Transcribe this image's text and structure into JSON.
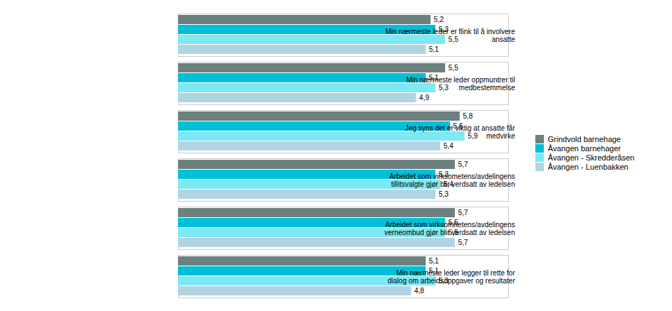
{
  "chart_data": {
    "type": "bar",
    "orientation": "horizontal",
    "categories": [
      "Min nærmeste leder er flink til å involvere\nansatte",
      "Min nærmeste leder oppmuntrer til\nmedbestemmelse",
      "Jeg syns det er viktig at ansatte får\nmedvirke",
      "Arbeidet som virksometens/avdelingens\ntillitsvalgte gjør blir verdsatt av ledelsen",
      "Arbeidet som virksomhetens/avdelingens\nverneombud gjør blir verdsatt av ledelsen",
      "Min nærmeste leder legger til rette for\ndialog om arbeidsoppgaver og resultater"
    ],
    "series": [
      {
        "name": "Grindvold barnehage",
        "color": "#6d8080",
        "values": [
          5.2,
          5.5,
          5.8,
          5.7,
          5.7,
          5.1
        ],
        "value_labels": [
          "5,2",
          "5,5",
          "5,8",
          "5,7",
          "5,7",
          "5,1"
        ]
      },
      {
        "name": "Åvangen barnehager",
        "color": "#00c0d8",
        "values": [
          5.3,
          5.1,
          5.6,
          5.3,
          5.5,
          5.1
        ],
        "value_labels": [
          "5,3",
          "5,1",
          "5,6",
          "5,3",
          "5,5",
          "5,1"
        ]
      },
      {
        "name": "Åvangen - Skredderåsen",
        "color": "#7ee8f4",
        "values": [
          5.5,
          5.3,
          5.9,
          5.4,
          5.5,
          5.3
        ],
        "value_labels": [
          "5,5",
          "5,3",
          "5,9",
          "5,4",
          "5,5",
          "5,3"
        ]
      },
      {
        "name": "Åvangen - Luenbakken",
        "color": "#b0d4e4",
        "values": [
          5.1,
          4.9,
          5.4,
          5.3,
          5.7,
          4.8
        ],
        "value_labels": [
          "5,1",
          "4,9",
          "5,4",
          "5,3",
          "5,7",
          "4,8"
        ]
      }
    ],
    "xlim": [
      0,
      6.8
    ],
    "xticks": [],
    "tick_labels": "y",
    "data_labels": true,
    "grid": false,
    "legend": "right"
  }
}
